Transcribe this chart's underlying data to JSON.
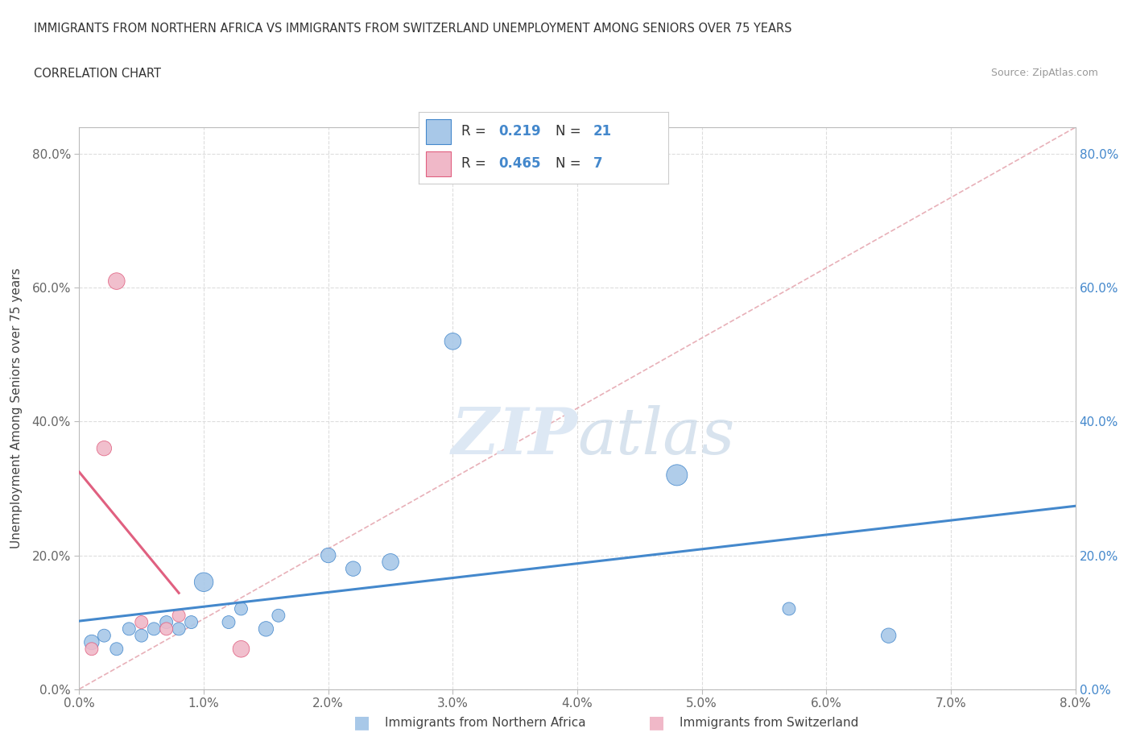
{
  "title_line1": "IMMIGRANTS FROM NORTHERN AFRICA VS IMMIGRANTS FROM SWITZERLAND UNEMPLOYMENT AMONG SENIORS OVER 75 YEARS",
  "title_line2": "CORRELATION CHART",
  "source": "Source: ZipAtlas.com",
  "ylabel_label": "Unemployment Among Seniors over 75 years",
  "blue_color": "#a8c8e8",
  "pink_color": "#f0b8c8",
  "blue_line_color": "#4488cc",
  "pink_line_color": "#e06080",
  "diag_color": "#e8b0b8",
  "r_blue": 0.219,
  "n_blue": 21,
  "r_pink": 0.465,
  "n_pink": 7,
  "blue_scatter_x": [
    0.001,
    0.002,
    0.003,
    0.004,
    0.005,
    0.006,
    0.007,
    0.008,
    0.009,
    0.01,
    0.012,
    0.013,
    0.015,
    0.016,
    0.02,
    0.022,
    0.025,
    0.03,
    0.048,
    0.057,
    0.065
  ],
  "blue_scatter_y": [
    0.07,
    0.08,
    0.06,
    0.09,
    0.08,
    0.09,
    0.1,
    0.09,
    0.1,
    0.16,
    0.1,
    0.12,
    0.09,
    0.11,
    0.2,
    0.18,
    0.19,
    0.52,
    0.32,
    0.12,
    0.08
  ],
  "blue_scatter_size": [
    80,
    60,
    60,
    60,
    60,
    60,
    60,
    60,
    60,
    130,
    60,
    60,
    80,
    60,
    80,
    80,
    100,
    100,
    160,
    60,
    80
  ],
  "pink_scatter_x": [
    0.001,
    0.002,
    0.003,
    0.005,
    0.007,
    0.008,
    0.013
  ],
  "pink_scatter_y": [
    0.06,
    0.36,
    0.61,
    0.1,
    0.09,
    0.11,
    0.06
  ],
  "pink_scatter_size": [
    60,
    80,
    100,
    60,
    60,
    60,
    100
  ],
  "xlim": [
    0.0,
    0.08
  ],
  "ylim": [
    0.0,
    0.84
  ],
  "watermark_zip": "ZIP",
  "watermark_atlas": "atlas",
  "legend_blue_label": "Immigrants from Northern Africa",
  "legend_pink_label": "Immigrants from Switzerland"
}
